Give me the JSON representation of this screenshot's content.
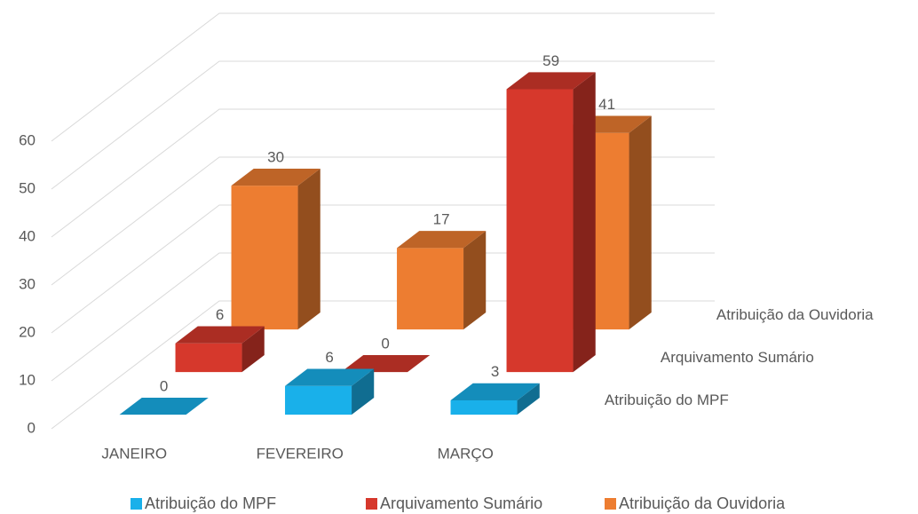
{
  "chart_data": {
    "type": "bar3d",
    "categories": [
      "JANEIRO",
      "FEVEREIRO",
      "MARÇO"
    ],
    "series": [
      {
        "name": "Atribuição do MPF",
        "color": "#19b0ea",
        "values": [
          0,
          6,
          3
        ]
      },
      {
        "name": "Arquivamento Sumário",
        "color": "#d6382c",
        "values": [
          6,
          0,
          59
        ]
      },
      {
        "name": "Atribuição da Ouvidoria",
        "color": "#ed7d31",
        "values": [
          30,
          17,
          41
        ]
      }
    ],
    "ylim": [
      0,
      60
    ],
    "yticks": [
      0,
      10,
      20,
      30,
      40,
      50,
      60
    ],
    "grid": true,
    "legend": "bottom"
  }
}
